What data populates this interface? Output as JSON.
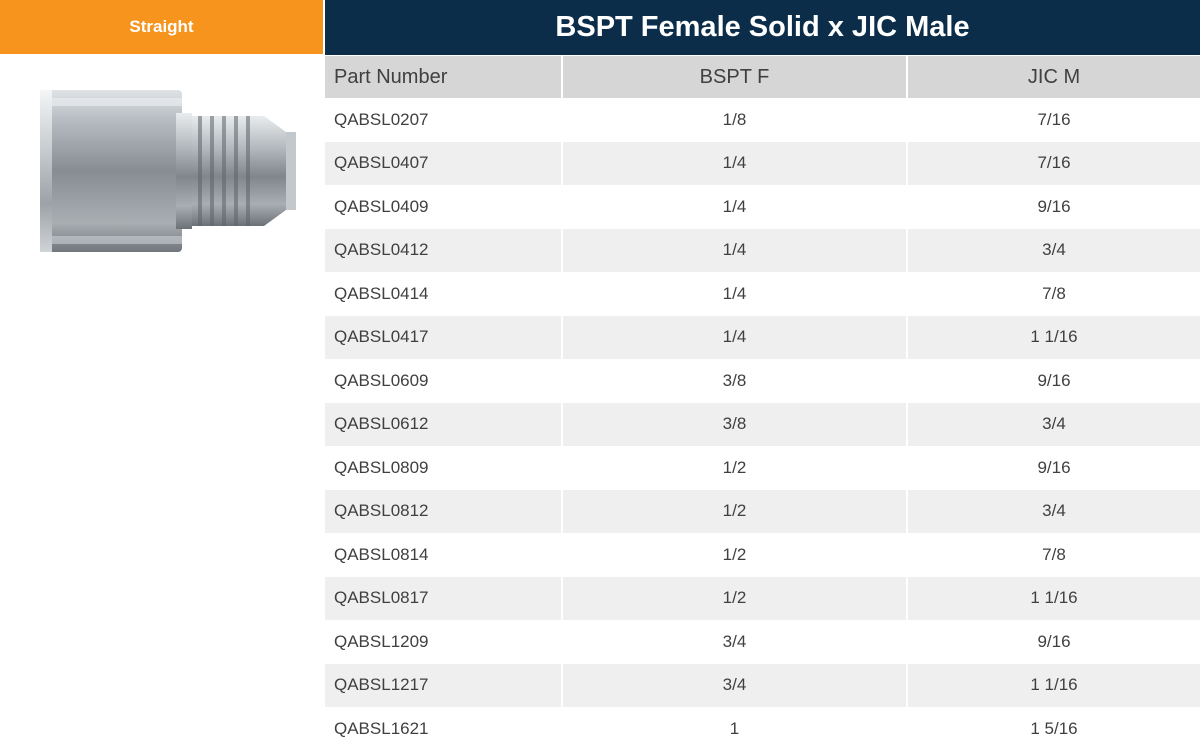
{
  "category": "Straight",
  "title": "BSPT Female Solid x JIC Male",
  "image": {
    "icon": "hydraulic-adapter-fitting-image"
  },
  "colors": {
    "accent": "#f7941d",
    "header_bg": "#0b2d4a",
    "column_header_bg": "#d6d6d6",
    "stripe": "#efefef"
  },
  "table": {
    "headers": [
      "Part Number",
      "BSPT F",
      "JIC M"
    ],
    "rows": [
      [
        "QABSL0207",
        "1/8",
        "7/16"
      ],
      [
        "QABSL0407",
        "1/4",
        "7/16"
      ],
      [
        "QABSL0409",
        "1/4",
        "9/16"
      ],
      [
        "QABSL0412",
        "1/4",
        "3/4"
      ],
      [
        "QABSL0414",
        "1/4",
        "7/8"
      ],
      [
        "QABSL0417",
        "1/4",
        "1 1/16"
      ],
      [
        "QABSL0609",
        "3/8",
        "9/16"
      ],
      [
        "QABSL0612",
        "3/8",
        "3/4"
      ],
      [
        "QABSL0809",
        "1/2",
        "9/16"
      ],
      [
        "QABSL0812",
        "1/2",
        "3/4"
      ],
      [
        "QABSL0814",
        "1/2",
        "7/8"
      ],
      [
        "QABSL0817",
        "1/2",
        "1 1/16"
      ],
      [
        "QABSL1209",
        "3/4",
        "9/16"
      ],
      [
        "QABSL1217",
        "3/4",
        "1 1/16"
      ],
      [
        "QABSL1621",
        "1",
        "1 5/16"
      ]
    ]
  }
}
